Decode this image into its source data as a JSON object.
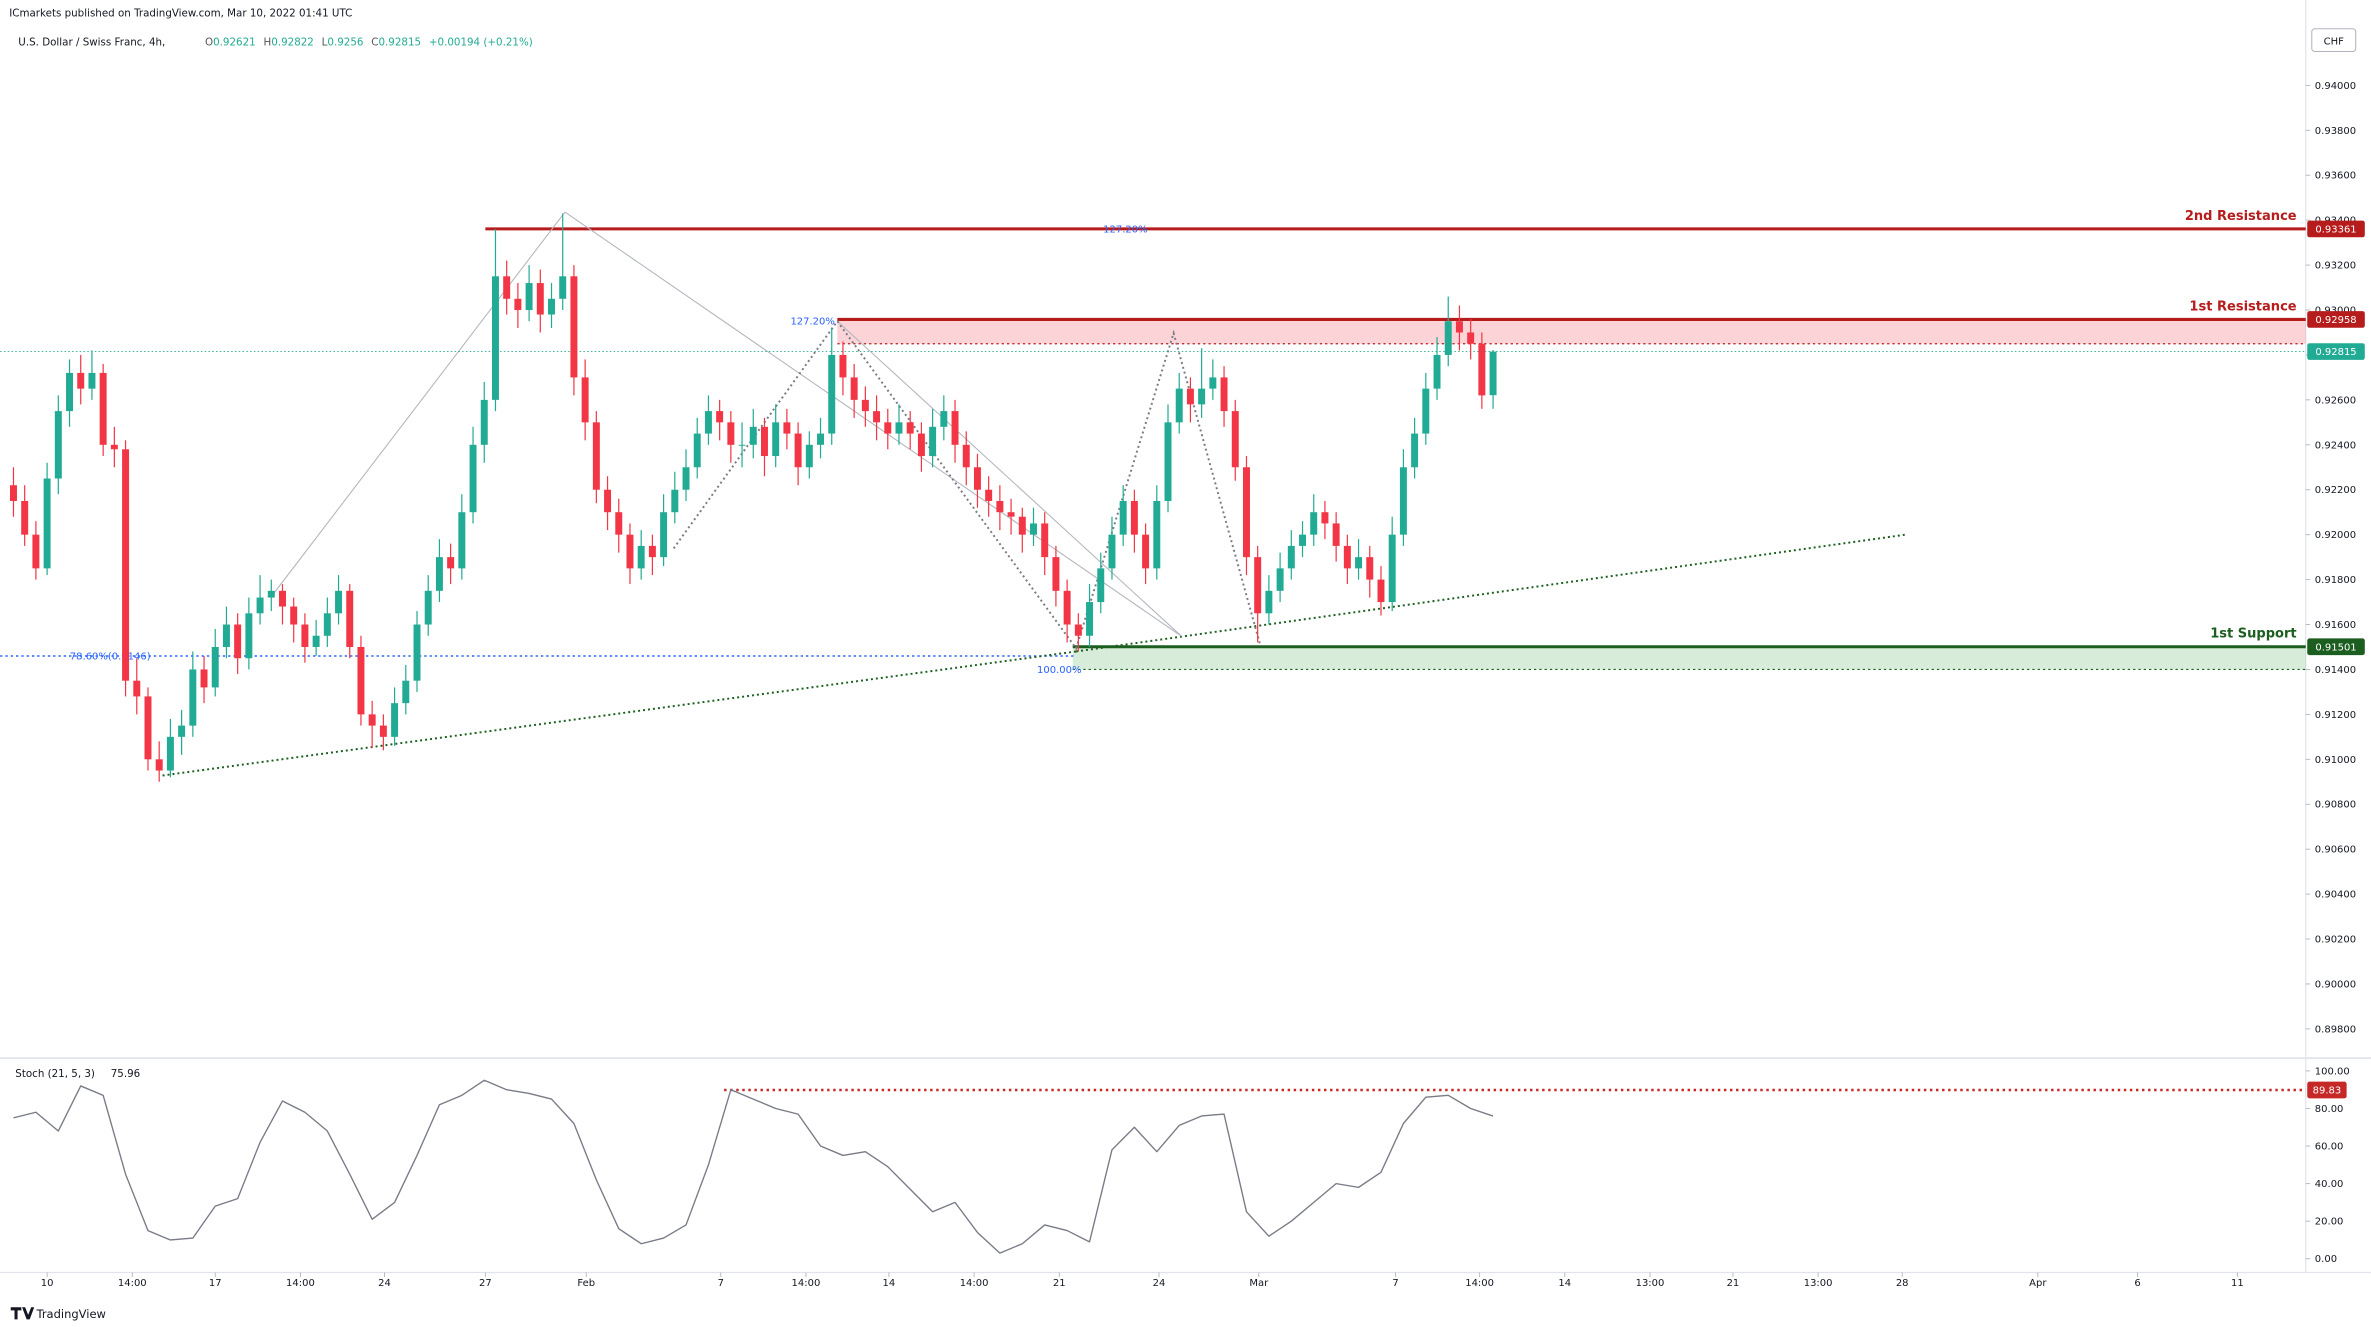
{
  "header": {
    "publisher": "ICmarkets published on TradingView.com, Mar 10, 2022 01:41 UTC",
    "symbol": "U.S. Dollar / Swiss Franc, 4h,",
    "ohlc_labels": [
      "O",
      "H",
      "L",
      "C"
    ],
    "change": "+0.00194 (+0.21%)",
    "currency": "CHF",
    "brand": "TradingView"
  },
  "chart_data": {
    "type": "candlestick",
    "up_color": "#22ab94",
    "down_color": "#f23645",
    "grid": false,
    "xlim": [
      -1.19,
      204.5
    ],
    "ylim": [
      0.8968,
      0.9438
    ],
    "yticks": [
      {
        "value": 0.898,
        "label": "0.89800"
      },
      {
        "value": 0.9,
        "label": "0.90000"
      },
      {
        "value": 0.902,
        "label": "0.90200"
      },
      {
        "value": 0.904,
        "label": "0.90400"
      },
      {
        "value": 0.906,
        "label": "0.90600"
      },
      {
        "value": 0.908,
        "label": "0.90800"
      },
      {
        "value": 0.91,
        "label": "0.91000"
      },
      {
        "value": 0.912,
        "label": "0.91200"
      },
      {
        "value": 0.914,
        "label": "0.91400"
      },
      {
        "value": 0.916,
        "label": "0.91600"
      },
      {
        "value": 0.918,
        "label": "0.91800"
      },
      {
        "value": 0.92,
        "label": "0.92000"
      },
      {
        "value": 0.922,
        "label": "0.92200"
      },
      {
        "value": 0.924,
        "label": "0.92400"
      },
      {
        "value": 0.926,
        "label": "0.92600"
      },
      {
        "value": 0.928,
        "label": "0.92800"
      },
      {
        "value": 0.93,
        "label": "0.93000"
      },
      {
        "value": 0.932,
        "label": "0.93200"
      },
      {
        "value": 0.934,
        "label": "0.93400"
      },
      {
        "value": 0.936,
        "label": "0.93600"
      },
      {
        "value": 0.938,
        "label": "0.93800"
      },
      {
        "value": 0.94,
        "label": "0.94000"
      }
    ],
    "xticks": [
      {
        "value": 3,
        "label": "10"
      },
      {
        "value": 10.6,
        "label": "14:00"
      },
      {
        "value": 18,
        "label": "17"
      },
      {
        "value": 25.6,
        "label": "14:00"
      },
      {
        "value": 33.1,
        "label": "24"
      },
      {
        "value": 42.1,
        "label": "27"
      },
      {
        "value": 51.1,
        "label": "Feb"
      },
      {
        "value": 63.1,
        "label": "7"
      },
      {
        "value": 70.7,
        "label": "14:00"
      },
      {
        "value": 78.1,
        "label": "14"
      },
      {
        "value": 85.7,
        "label": "14:00"
      },
      {
        "value": 93.3,
        "label": "21"
      },
      {
        "value": 102.2,
        "label": "24"
      },
      {
        "value": 111.1,
        "label": "Mar"
      },
      {
        "value": 123.3,
        "label": "7"
      },
      {
        "value": 130.8,
        "label": "14:00"
      },
      {
        "value": 138.4,
        "label": "14"
      },
      {
        "value": 146,
        "label": "13:00"
      },
      {
        "value": 153.4,
        "label": "21"
      },
      {
        "value": 161,
        "label": "13:00"
      },
      {
        "value": 168.5,
        "label": "28"
      },
      {
        "value": 180.6,
        "label": "Apr"
      },
      {
        "value": 189.5,
        "label": "6"
      },
      {
        "value": 198.4,
        "label": "11"
      }
    ],
    "candles": [
      [
        0.9222,
        0.923,
        0.9208,
        0.9215
      ],
      [
        0.9215,
        0.9222,
        0.9195,
        0.92
      ],
      [
        0.92,
        0.9206,
        0.918,
        0.9185
      ],
      [
        0.9185,
        0.9232,
        0.9182,
        0.9225
      ],
      [
        0.9225,
        0.9262,
        0.9218,
        0.9255
      ],
      [
        0.9255,
        0.9278,
        0.9248,
        0.9272
      ],
      [
        0.9272,
        0.928,
        0.9258,
        0.9265
      ],
      [
        0.9265,
        0.9282,
        0.926,
        0.9272
      ],
      [
        0.9272,
        0.9276,
        0.9235,
        0.924
      ],
      [
        0.924,
        0.9248,
        0.923,
        0.9238
      ],
      [
        0.9238,
        0.9242,
        0.9128,
        0.9135
      ],
      [
        0.9135,
        0.9145,
        0.912,
        0.9128
      ],
      [
        0.9128,
        0.9132,
        0.9095,
        0.91
      ],
      [
        0.91,
        0.9108,
        0.909,
        0.9095
      ],
      [
        0.9095,
        0.9118,
        0.9092,
        0.911
      ],
      [
        0.911,
        0.9122,
        0.9102,
        0.9115
      ],
      [
        0.9115,
        0.9148,
        0.911,
        0.914
      ],
      [
        0.914,
        0.9146,
        0.9125,
        0.9132
      ],
      [
        0.9132,
        0.9158,
        0.9128,
        0.915
      ],
      [
        0.915,
        0.9168,
        0.9145,
        0.916
      ],
      [
        0.916,
        0.9165,
        0.9138,
        0.9145
      ],
      [
        0.9145,
        0.9172,
        0.914,
        0.9165
      ],
      [
        0.9165,
        0.9182,
        0.916,
        0.9172
      ],
      [
        0.9172,
        0.918,
        0.9166,
        0.9175
      ],
      [
        0.9175,
        0.9178,
        0.916,
        0.9168
      ],
      [
        0.9168,
        0.9172,
        0.9152,
        0.916
      ],
      [
        0.916,
        0.9165,
        0.9143,
        0.915
      ],
      [
        0.915,
        0.9162,
        0.9146,
        0.9155
      ],
      [
        0.9155,
        0.9172,
        0.915,
        0.9165
      ],
      [
        0.9165,
        0.9182,
        0.916,
        0.9175
      ],
      [
        0.9175,
        0.9178,
        0.9145,
        0.915
      ],
      [
        0.915,
        0.9155,
        0.9115,
        0.912
      ],
      [
        0.912,
        0.9126,
        0.9105,
        0.9115
      ],
      [
        0.9115,
        0.912,
        0.9104,
        0.911
      ],
      [
        0.911,
        0.9132,
        0.9106,
        0.9125
      ],
      [
        0.9125,
        0.9142,
        0.912,
        0.9135
      ],
      [
        0.9135,
        0.9166,
        0.913,
        0.916
      ],
      [
        0.916,
        0.9182,
        0.9155,
        0.9175
      ],
      [
        0.9175,
        0.9198,
        0.917,
        0.919
      ],
      [
        0.919,
        0.9196,
        0.9178,
        0.9185
      ],
      [
        0.9185,
        0.9218,
        0.918,
        0.921
      ],
      [
        0.921,
        0.9248,
        0.9205,
        0.924
      ],
      [
        0.924,
        0.9268,
        0.9232,
        0.926
      ],
      [
        0.926,
        0.9336,
        0.9255,
        0.9315
      ],
      [
        0.9315,
        0.9322,
        0.9298,
        0.9305
      ],
      [
        0.9305,
        0.9312,
        0.9292,
        0.93
      ],
      [
        0.93,
        0.932,
        0.9295,
        0.9312
      ],
      [
        0.9312,
        0.9318,
        0.929,
        0.9298
      ],
      [
        0.9298,
        0.9312,
        0.9292,
        0.9305
      ],
      [
        0.9305,
        0.9343,
        0.93,
        0.9315
      ],
      [
        0.9315,
        0.932,
        0.9262,
        0.927
      ],
      [
        0.927,
        0.9278,
        0.9242,
        0.925
      ],
      [
        0.925,
        0.9255,
        0.9214,
        0.922
      ],
      [
        0.922,
        0.9226,
        0.9202,
        0.921
      ],
      [
        0.921,
        0.9216,
        0.9192,
        0.92
      ],
      [
        0.92,
        0.9205,
        0.9178,
        0.9185
      ],
      [
        0.9185,
        0.9202,
        0.918,
        0.9195
      ],
      [
        0.9195,
        0.92,
        0.9182,
        0.919
      ],
      [
        0.919,
        0.9218,
        0.9186,
        0.921
      ],
      [
        0.921,
        0.9228,
        0.9205,
        0.922
      ],
      [
        0.922,
        0.9238,
        0.9215,
        0.923
      ],
      [
        0.923,
        0.9252,
        0.9225,
        0.9245
      ],
      [
        0.9245,
        0.9262,
        0.924,
        0.9255
      ],
      [
        0.9255,
        0.926,
        0.9242,
        0.925
      ],
      [
        0.925,
        0.9255,
        0.9232,
        0.924
      ],
      [
        0.924,
        0.925,
        0.923,
        0.924
      ],
      [
        0.924,
        0.9256,
        0.9234,
        0.9248
      ],
      [
        0.9248,
        0.9252,
        0.9226,
        0.9235
      ],
      [
        0.9235,
        0.9258,
        0.923,
        0.925
      ],
      [
        0.925,
        0.9256,
        0.9238,
        0.9245
      ],
      [
        0.9245,
        0.925,
        0.9222,
        0.923
      ],
      [
        0.923,
        0.9246,
        0.9225,
        0.924
      ],
      [
        0.924,
        0.9252,
        0.9234,
        0.9245
      ],
      [
        0.9245,
        0.9292,
        0.924,
        0.928
      ],
      [
        0.928,
        0.9286,
        0.9262,
        0.927
      ],
      [
        0.927,
        0.9276,
        0.9252,
        0.926
      ],
      [
        0.926,
        0.9266,
        0.9248,
        0.9255
      ],
      [
        0.9255,
        0.9262,
        0.9242,
        0.925
      ],
      [
        0.925,
        0.9256,
        0.9238,
        0.9245
      ],
      [
        0.9245,
        0.9258,
        0.924,
        0.925
      ],
      [
        0.925,
        0.9255,
        0.9238,
        0.9245
      ],
      [
        0.9245,
        0.925,
        0.9228,
        0.9235
      ],
      [
        0.9235,
        0.9256,
        0.923,
        0.9248
      ],
      [
        0.9248,
        0.9262,
        0.9242,
        0.9255
      ],
      [
        0.9255,
        0.926,
        0.9232,
        0.924
      ],
      [
        0.924,
        0.9246,
        0.9222,
        0.923
      ],
      [
        0.923,
        0.9236,
        0.9212,
        0.922
      ],
      [
        0.922,
        0.9226,
        0.9208,
        0.9215
      ],
      [
        0.9215,
        0.9222,
        0.9202,
        0.921
      ],
      [
        0.921,
        0.9216,
        0.92,
        0.9208
      ],
      [
        0.9208,
        0.9212,
        0.9192,
        0.92
      ],
      [
        0.92,
        0.9212,
        0.9195,
        0.9205
      ],
      [
        0.9205,
        0.921,
        0.9182,
        0.919
      ],
      [
        0.919,
        0.9195,
        0.9168,
        0.9175
      ],
      [
        0.9175,
        0.918,
        0.9152,
        0.916
      ],
      [
        0.916,
        0.9165,
        0.9148,
        0.9155
      ],
      [
        0.9155,
        0.9178,
        0.915,
        0.917
      ],
      [
        0.917,
        0.9192,
        0.9165,
        0.9185
      ],
      [
        0.9185,
        0.9208,
        0.918,
        0.92
      ],
      [
        0.92,
        0.9222,
        0.9195,
        0.9215
      ],
      [
        0.9215,
        0.922,
        0.9192,
        0.92
      ],
      [
        0.92,
        0.9205,
        0.9178,
        0.9185
      ],
      [
        0.9185,
        0.9222,
        0.918,
        0.9215
      ],
      [
        0.9215,
        0.9258,
        0.921,
        0.925
      ],
      [
        0.925,
        0.9272,
        0.9245,
        0.9265
      ],
      [
        0.9265,
        0.927,
        0.925,
        0.9258
      ],
      [
        0.9258,
        0.9283,
        0.9252,
        0.9265
      ],
      [
        0.9265,
        0.9278,
        0.926,
        0.927
      ],
      [
        0.927,
        0.9275,
        0.9248,
        0.9255
      ],
      [
        0.9255,
        0.926,
        0.9224,
        0.923
      ],
      [
        0.923,
        0.9235,
        0.9182,
        0.919
      ],
      [
        0.919,
        0.9195,
        0.9152,
        0.9165
      ],
      [
        0.9165,
        0.9182,
        0.916,
        0.9175
      ],
      [
        0.9175,
        0.9192,
        0.917,
        0.9185
      ],
      [
        0.9185,
        0.9202,
        0.918,
        0.9195
      ],
      [
        0.9195,
        0.9206,
        0.919,
        0.92
      ],
      [
        0.92,
        0.9218,
        0.9195,
        0.921
      ],
      [
        0.921,
        0.9215,
        0.9198,
        0.9205
      ],
      [
        0.9205,
        0.921,
        0.9188,
        0.9195
      ],
      [
        0.9195,
        0.92,
        0.9178,
        0.9185
      ],
      [
        0.9185,
        0.9198,
        0.918,
        0.919
      ],
      [
        0.919,
        0.9195,
        0.9172,
        0.918
      ],
      [
        0.918,
        0.9186,
        0.9164,
        0.917
      ],
      [
        0.917,
        0.9208,
        0.9166,
        0.92
      ],
      [
        0.92,
        0.9238,
        0.9195,
        0.923
      ],
      [
        0.923,
        0.9252,
        0.9225,
        0.9245
      ],
      [
        0.9245,
        0.9272,
        0.924,
        0.9265
      ],
      [
        0.9265,
        0.9288,
        0.926,
        0.928
      ],
      [
        0.928,
        0.9306,
        0.9275,
        0.9295
      ],
      [
        0.9295,
        0.9302,
        0.9282,
        0.929
      ],
      [
        0.929,
        0.9296,
        0.9278,
        0.9285
      ],
      [
        0.9285,
        0.929,
        0.9256,
        0.9262
      ],
      [
        0.92621,
        0.92822,
        0.9256,
        0.92815
      ]
    ],
    "levels": [
      {
        "name": "2nd Resistance",
        "value": 0.93361,
        "start": 42.1,
        "color": "#b71c1c"
      },
      {
        "name": "1st Resistance",
        "value": 0.92958,
        "start": 73.5,
        "color": "#b71c1c",
        "zone": [
          0.92958,
          0.9285
        ],
        "zone_color": "rgba(242,54,69,0.22)"
      },
      {
        "name": "1st Support",
        "value": 0.91501,
        "start": 94.5,
        "color": "#1b5e20",
        "zone": [
          0.91501,
          0.914
        ],
        "zone_color": "rgba(76,175,80,0.22)"
      }
    ],
    "fib": [
      {
        "label": "127.20%",
        "value": 0.93361,
        "x": 99.2
      },
      {
        "label": "127.20%",
        "value": 0.9295,
        "x": 71.3
      },
      {
        "label": "100.00%",
        "value": 0.914,
        "x": 93.3
      }
    ],
    "fib_line": {
      "label": "78.60%(0.9146)",
      "value": 0.9146,
      "end": 94.8,
      "color": "#2962ff"
    },
    "trendlines": [
      {
        "points": [
          [
            13.3,
            0.90928
          ],
          [
            94.8,
            0.9148
          ]
        ],
        "color": "#1b5e20",
        "style": "dotted"
      },
      {
        "points": [
          [
            94.8,
            0.9148
          ],
          [
            168.8,
            0.92
          ]
        ],
        "color": "#1b5e20",
        "style": "dotted"
      },
      {
        "points": [
          [
            23.2,
            0.91737
          ],
          [
            49.2,
            0.93436
          ]
        ],
        "color": "#b2b5be",
        "style": "solid"
      },
      {
        "points": [
          [
            49.2,
            0.93436
          ],
          [
            104.2,
            0.91548
          ]
        ],
        "color": "#b2b5be",
        "style": "solid"
      },
      {
        "points": [
          [
            73.5,
            0.9295
          ],
          [
            104.2,
            0.91548
          ]
        ],
        "color": "#b2b5be",
        "style": "solid"
      },
      {
        "points": [
          [
            58.9,
            0.91939
          ],
          [
            73.5,
            0.9295
          ],
          [
            94.8,
            0.91494
          ],
          [
            103.5,
            0.92897
          ],
          [
            111.2,
            0.91514
          ]
        ],
        "color": "#787b86",
        "style": "dotted"
      }
    ],
    "indicator": {
      "type": "line",
      "name": "Stoch (21, 5, 3)",
      "color": "#787b86",
      "ylim": [
        -7.3,
        105.6
      ],
      "yticks": [
        {
          "value": 0,
          "label": "0.00"
        },
        {
          "value": 20,
          "label": "20.00"
        },
        {
          "value": 40,
          "label": "40.00"
        },
        {
          "value": 60,
          "label": "60.00"
        },
        {
          "value": 80,
          "label": "80.00"
        },
        {
          "value": 100,
          "label": "100.00"
        }
      ],
      "level": {
        "value": 89.83,
        "start": 63.4,
        "color": "#c62828"
      },
      "x": [
        0,
        2,
        4,
        6,
        8,
        10,
        12,
        14,
        16,
        18,
        20,
        22,
        24,
        26,
        28,
        30,
        32,
        34,
        36,
        38,
        40,
        42,
        44,
        46,
        48,
        50,
        52,
        54,
        56,
        58,
        60,
        62,
        64,
        66,
        68,
        70,
        72,
        74,
        76,
        78,
        80,
        82,
        84,
        86,
        88,
        90,
        92,
        94,
        96,
        98,
        100,
        102,
        104,
        106,
        108,
        110,
        112,
        114,
        116,
        118,
        120,
        122,
        124,
        126,
        128,
        130,
        132
      ],
      "values": [
        75,
        78,
        68,
        92,
        87,
        45,
        15,
        10,
        11,
        28,
        32,
        62,
        84,
        78,
        68,
        45,
        21,
        30,
        55,
        82,
        87,
        95,
        90,
        88,
        85,
        72,
        42,
        16,
        8,
        11,
        18,
        50,
        90,
        85,
        80,
        77,
        60,
        55,
        57,
        49,
        37,
        25,
        30,
        14,
        3,
        8,
        18,
        15,
        9,
        58,
        70,
        57,
        71,
        76,
        77,
        25,
        12,
        20,
        30,
        40,
        38,
        46,
        72,
        86,
        87,
        80,
        75.96
      ]
    }
  }
}
